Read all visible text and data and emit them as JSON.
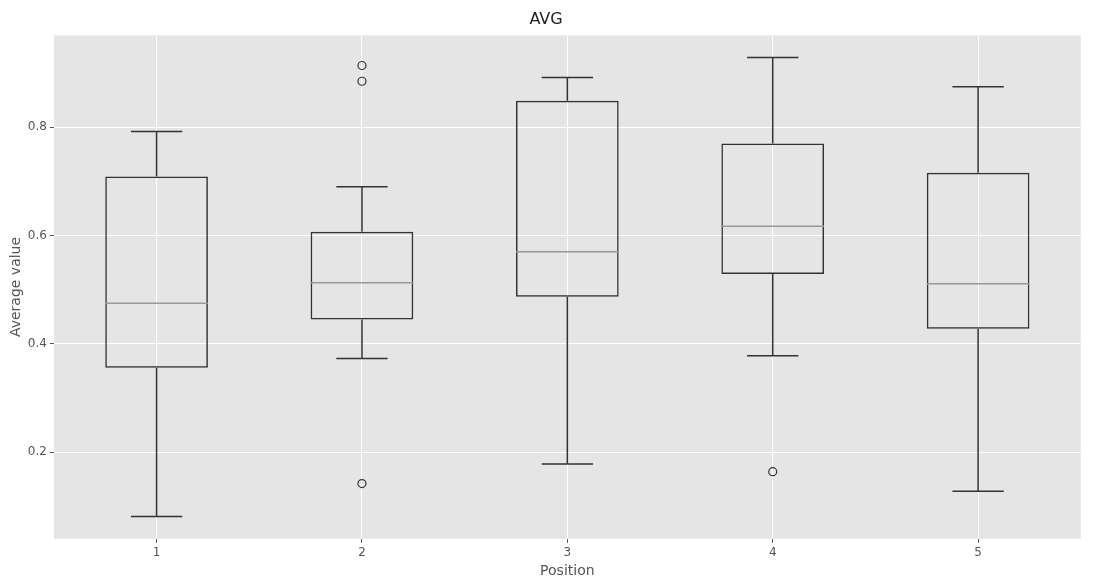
{
  "chart_data": {
    "type": "box",
    "title": "AVG",
    "xlabel": "Position",
    "ylabel": "Average value",
    "categories": [
      "1",
      "2",
      "3",
      "4",
      "5"
    ],
    "boxes": [
      {
        "low": 0.081,
        "q1": 0.356,
        "median": 0.475,
        "q3": 0.709,
        "high": 0.792
      },
      {
        "low": 0.373,
        "q1": 0.445,
        "median": 0.513,
        "q3": 0.607,
        "high": 0.69,
        "outliers": [
          0.914,
          0.885,
          0.142
        ]
      },
      {
        "low": 0.178,
        "q1": 0.487,
        "median": 0.57,
        "q3": 0.849,
        "high": 0.892
      },
      {
        "low": 0.378,
        "q1": 0.529,
        "median": 0.617,
        "q3": 0.77,
        "high": 0.929,
        "outliers": [
          0.164
        ]
      },
      {
        "low": 0.128,
        "q1": 0.428,
        "median": 0.511,
        "q3": 0.716,
        "high": 0.875
      }
    ],
    "ylim": [
      0.04,
      0.97
    ],
    "yticks": [
      0.2,
      0.4,
      0.6,
      0.8
    ],
    "grid": true,
    "legend": false
  }
}
